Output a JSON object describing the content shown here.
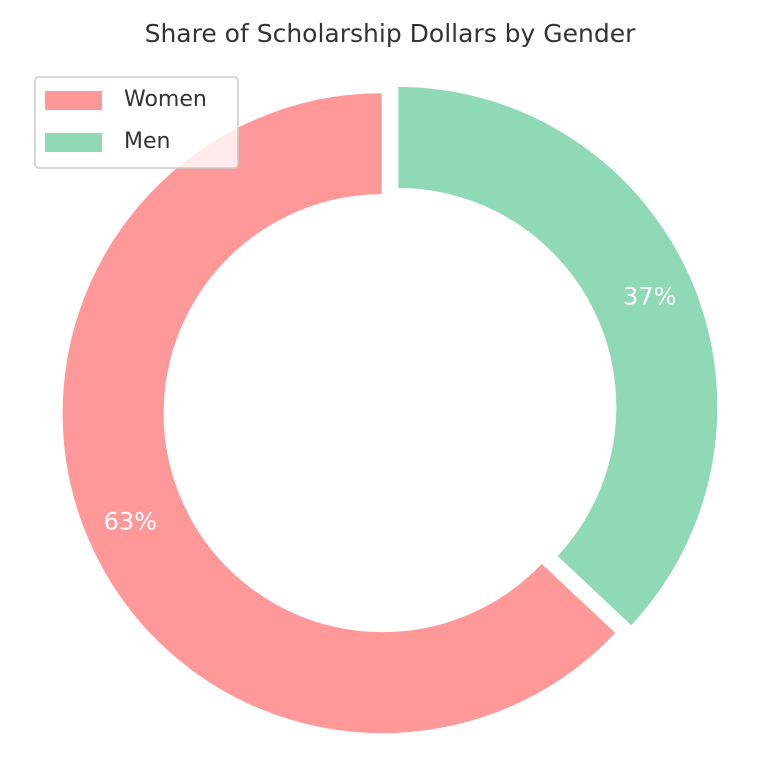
{
  "chart_data": {
    "type": "pie",
    "title": "Share of Scholarship Dollars by Gender",
    "categories": [
      "Women",
      "Men"
    ],
    "values": [
      63,
      37
    ],
    "value_labels": [
      "63%",
      "37%"
    ],
    "colors": [
      "#ff9999",
      "#8fd9b6"
    ],
    "legend": "upper left"
  }
}
